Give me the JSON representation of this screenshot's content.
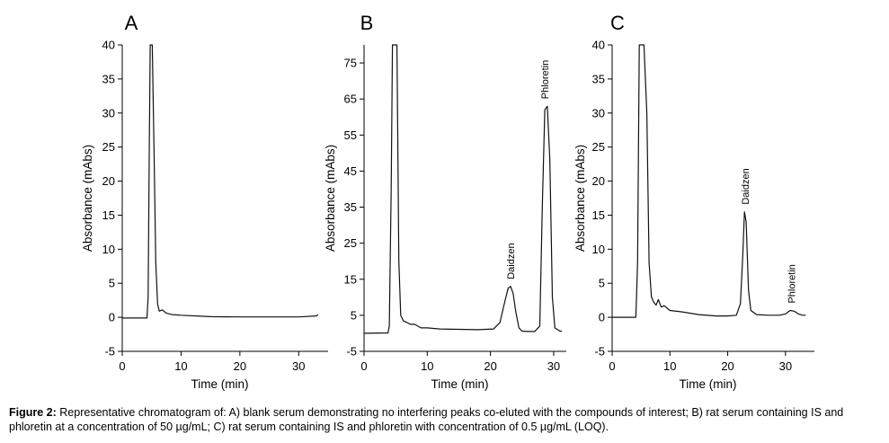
{
  "chart_data": [
    {
      "panel_label": "A",
      "type": "line",
      "xlabel": "Time (min)",
      "ylabel": "Absorbance (mAbs)",
      "xlim": [
        0,
        35
      ],
      "ylim": [
        -5,
        40
      ],
      "xticks": [
        0,
        10,
        20,
        30
      ],
      "yticks": [
        -5,
        0,
        5,
        10,
        15,
        20,
        25,
        30,
        35,
        40
      ],
      "annotations": [],
      "series": [
        {
          "x": [
            0,
            4.2,
            4.4,
            4.6,
            4.75,
            4.9,
            5.1,
            5.4,
            5.7,
            6.0,
            6.3,
            6.8,
            7.5,
            8.5,
            10,
            15,
            20,
            25,
            30,
            33,
            33.3
          ],
          "y": [
            -0.1,
            -0.1,
            3,
            25,
            40,
            40,
            40,
            25,
            8,
            2,
            0.9,
            1.1,
            0.6,
            0.4,
            0.3,
            0.1,
            0.05,
            0.05,
            0.05,
            0.2,
            0.4
          ]
        }
      ]
    },
    {
      "panel_label": "B",
      "type": "line",
      "xlabel": "Time (min)",
      "ylabel": "Absorbance (mAbs)",
      "xlim": [
        0,
        32
      ],
      "ylim": [
        -5,
        80
      ],
      "xticks": [
        0,
        10,
        20,
        30
      ],
      "yticks": [
        -5,
        5,
        15,
        25,
        35,
        45,
        55,
        65,
        75
      ],
      "annotations": [
        {
          "text": "Daidzen",
          "x": 23.2,
          "y": 13
        },
        {
          "text": "Phloretin",
          "x": 28.6,
          "y": 63
        }
      ],
      "series": [
        {
          "x": [
            0,
            3.8,
            4.0,
            4.3,
            4.5,
            4.8,
            5.2,
            5.5,
            5.8,
            6.2,
            6.8,
            7.3,
            8,
            9,
            10,
            12,
            15,
            18,
            20.5,
            21.5,
            22.3,
            22.8,
            23.2,
            23.6,
            24.0,
            24.5,
            25,
            26,
            27,
            27.8,
            28.2,
            28.6,
            29.0,
            29.4,
            29.8,
            30.2,
            31,
            31.3
          ],
          "y": [
            0,
            0.1,
            2,
            40,
            80,
            80,
            80,
            20,
            5,
            3.5,
            3,
            2.5,
            2.5,
            1.5,
            1.5,
            1.2,
            1.1,
            1.0,
            1.2,
            3,
            9,
            12.5,
            13,
            11,
            6,
            1.5,
            0.6,
            0.5,
            0.5,
            2,
            35,
            62,
            63,
            48,
            10,
            1.5,
            0.6,
            0.6
          ]
        }
      ]
    },
    {
      "panel_label": "C",
      "type": "line",
      "xlabel": "Time (min)",
      "ylabel": "Absorbance (mAbs)",
      "xlim": [
        0,
        35
      ],
      "ylim": [
        -5,
        40
      ],
      "xticks": [
        0,
        10,
        20,
        30
      ],
      "yticks": [
        -5,
        0,
        5,
        10,
        15,
        20,
        25,
        30,
        35,
        40
      ],
      "annotations": [
        {
          "text": "Daidzen",
          "x": 23,
          "y": 15.5
        },
        {
          "text": "Phloretin",
          "x": 31,
          "y": 1
        }
      ],
      "series": [
        {
          "x": [
            0,
            4.1,
            4.4,
            4.7,
            5.0,
            5.5,
            6.0,
            6.4,
            6.8,
            7.2,
            7.6,
            8.0,
            8.5,
            9,
            10,
            12,
            15,
            18,
            20,
            21.5,
            22.2,
            22.6,
            22.9,
            23.2,
            23.6,
            24.0,
            25,
            27,
            29,
            30,
            30.8,
            31.5,
            32.2,
            33,
            33.5
          ],
          "y": [
            0,
            0,
            8,
            40,
            40,
            40,
            30,
            8,
            3,
            2.2,
            1.8,
            2.6,
            1.5,
            1.7,
            1.0,
            0.8,
            0.4,
            0.2,
            0.2,
            0.3,
            2,
            9,
            15.5,
            14,
            4,
            1.0,
            0.4,
            0.3,
            0.3,
            0.5,
            1.0,
            0.9,
            0.5,
            0.3,
            0.3
          ]
        }
      ]
    }
  ],
  "caption": {
    "label": "Figure 2:",
    "text": " Representative chromatogram of: A) blank serum demonstrating no interfering peaks co-eluted with the compounds of interest; B) rat serum containing IS and phloretin at a concentration of 50 µg/mL; C) rat serum containing IS and phloretin with concentration of 0.5 µg/mL (LOQ)."
  }
}
